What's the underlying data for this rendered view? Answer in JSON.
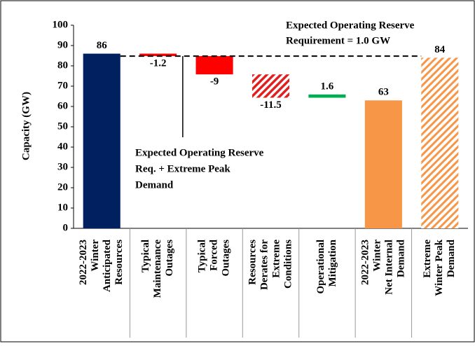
{
  "chart_data": {
    "type": "waterfall",
    "categories": [
      [
        "2022-2023",
        "Winter",
        "Anticipated",
        "Resources"
      ],
      [
        "Typical",
        "Maintenance",
        "Outages"
      ],
      [
        "Typical",
        "Forced",
        "Outages"
      ],
      [
        "Resources",
        "Derates for",
        "Extreme",
        "Conditions"
      ],
      [
        "Operational",
        "Mitigation"
      ],
      [
        "2022-2023",
        "Winter",
        "Net Internal",
        "Demand"
      ],
      [
        "Extreme",
        "Winter Peak",
        "Demand"
      ]
    ],
    "values": [
      86,
      -1.2,
      -9,
      -11.5,
      1.6,
      63,
      84
    ],
    "bar_kinds": [
      "total",
      "delta",
      "delta",
      "delta",
      "delta",
      "total",
      "total"
    ],
    "colors": [
      "#002060",
      "#ff0000",
      "#ff0000",
      "#e02020",
      "#00b050",
      "#f79646",
      "#f79646"
    ],
    "hatched": [
      false,
      false,
      false,
      true,
      false,
      false,
      true
    ],
    "ylabel": "Capacity (GW)",
    "ylim": [
      0,
      100
    ],
    "yticks": [
      0,
      10,
      20,
      30,
      40,
      50,
      60,
      70,
      80,
      90,
      100
    ],
    "annotations": [
      {
        "lines": [
          "Expected Operating Reserve",
          "Requirement = 1.0 GW"
        ]
      },
      {
        "lines": [
          "Expected Operating Reserve",
          "Req. + Extreme Peak",
          "Demand"
        ]
      }
    ]
  }
}
